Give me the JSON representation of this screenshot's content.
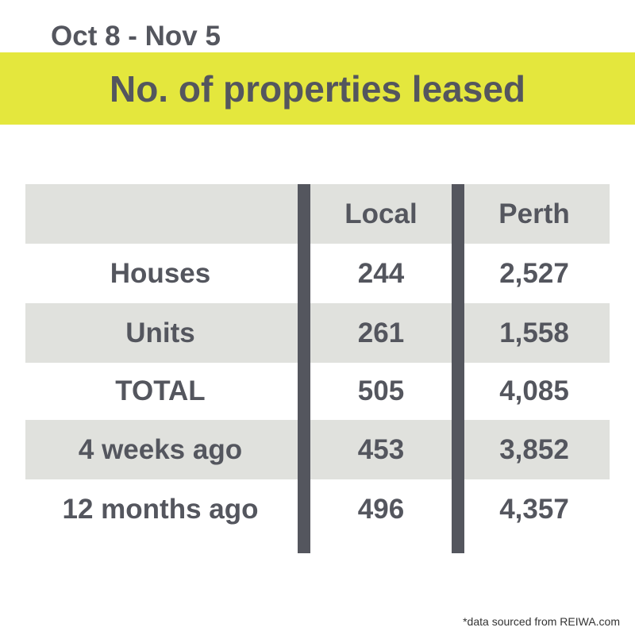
{
  "header": {
    "date_range": "Oct 8 - Nov 5",
    "title": "No. of properties leased"
  },
  "table": {
    "columns": {
      "label": "",
      "local": "Local",
      "perth": "Perth"
    },
    "rows": [
      {
        "label": "Houses",
        "local": "244",
        "perth": "2,527"
      },
      {
        "label": "Units",
        "local": "261",
        "perth": "1,558"
      },
      {
        "label": "TOTAL",
        "local": "505",
        "perth": "4,085"
      },
      {
        "label": "4 weeks ago",
        "local": "453",
        "perth": "3,852"
      },
      {
        "label": "12 months ago",
        "local": "496",
        "perth": "4,357"
      }
    ]
  },
  "footnote": "*data sourced from REIWA.com",
  "colors": {
    "accent_band": "#e4e73d",
    "text": "#54565e",
    "shaded_row": "#e0e1dd",
    "divider": "#54565e"
  }
}
